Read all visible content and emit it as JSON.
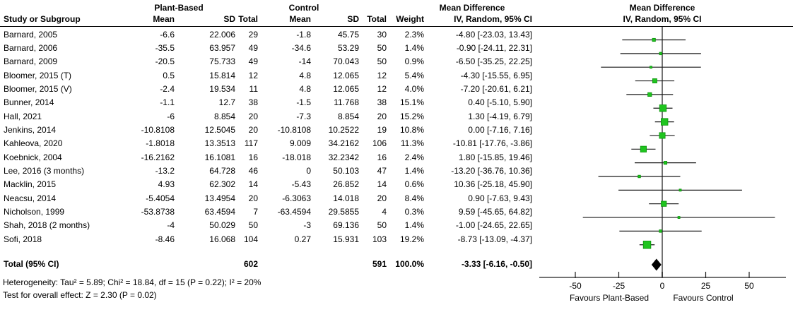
{
  "header": {
    "group_plant": "Plant-Based",
    "group_control": "Control",
    "md_text_title": "Mean Difference",
    "md_text_sub": "IV, Random, 95% CI",
    "md_plot_title": "Mean Difference",
    "md_plot_sub": "IV, Random, 95% CI",
    "study_col": "Study or Subgroup",
    "mean_col": "Mean",
    "sd_col": "SD",
    "total_col": "Total",
    "weight_col": "Weight"
  },
  "chart_data": {
    "type": "forest",
    "x_axis": {
      "ticks": [
        -50,
        -25,
        0,
        25,
        50
      ],
      "tick_labels": [
        "-50",
        "-25",
        "0",
        "25",
        "50"
      ],
      "min": -70,
      "max": 71
    },
    "favours_left": "Favours Plant-Based",
    "favours_right": "Favours Control",
    "colors": {
      "marker": "#1fc41f",
      "marker_border": "#0c930c",
      "ci_line": "#1a1a1a",
      "axis": "#737373",
      "zero_line": "#737373",
      "diamond": "#000000",
      "text": "#000000"
    },
    "studies": [
      {
        "name": "Barnard, 2005",
        "pb_mean": "-6.6",
        "pb_sd": "22.006",
        "pb_total": "29",
        "c_mean": "-1.8",
        "c_sd": "45.75",
        "c_total": "30",
        "weight": "2.3%",
        "weight_pct": 2.3,
        "md": -4.8,
        "ci_low": -23.03,
        "ci_high": 13.43,
        "md_ci": "-4.80 [-23.03, 13.43]"
      },
      {
        "name": "Barnard, 2006",
        "pb_mean": "-35.5",
        "pb_sd": "63.957",
        "pb_total": "49",
        "c_mean": "-34.6",
        "c_sd": "53.29",
        "c_total": "50",
        "weight": "1.4%",
        "weight_pct": 1.4,
        "md": -0.9,
        "ci_low": -24.11,
        "ci_high": 22.31,
        "md_ci": "-0.90 [-24.11, 22.31]"
      },
      {
        "name": "Barnard, 2009",
        "pb_mean": "-20.5",
        "pb_sd": "75.733",
        "pb_total": "49",
        "c_mean": "-14",
        "c_sd": "70.043",
        "c_total": "50",
        "weight": "0.9%",
        "weight_pct": 0.9,
        "md": -6.5,
        "ci_low": -35.25,
        "ci_high": 22.25,
        "md_ci": "-6.50 [-35.25, 22.25]"
      },
      {
        "name": "Bloomer, 2015 (T)",
        "pb_mean": "0.5",
        "pb_sd": "15.814",
        "pb_total": "12",
        "c_mean": "4.8",
        "c_sd": "12.065",
        "c_total": "12",
        "weight": "5.4%",
        "weight_pct": 5.4,
        "md": -4.3,
        "ci_low": -15.55,
        "ci_high": 6.95,
        "md_ci": "-4.30 [-15.55, 6.95]"
      },
      {
        "name": "Bloomer, 2015 (V)",
        "pb_mean": "-2.4",
        "pb_sd": "19.534",
        "pb_total": "11",
        "c_mean": "4.8",
        "c_sd": "12.065",
        "c_total": "12",
        "weight": "4.0%",
        "weight_pct": 4.0,
        "md": -7.2,
        "ci_low": -20.61,
        "ci_high": 6.21,
        "md_ci": "-7.20 [-20.61, 6.21]"
      },
      {
        "name": "Bunner, 2014",
        "pb_mean": "-1.1",
        "pb_sd": "12.7",
        "pb_total": "38",
        "c_mean": "-1.5",
        "c_sd": "11.768",
        "c_total": "38",
        "weight": "15.1%",
        "weight_pct": 15.1,
        "md": 0.4,
        "ci_low": -5.1,
        "ci_high": 5.9,
        "md_ci": "0.40 [-5.10, 5.90]"
      },
      {
        "name": "Hall, 2021",
        "pb_mean": "-6",
        "pb_sd": "8.854",
        "pb_total": "20",
        "c_mean": "-7.3",
        "c_sd": "8.854",
        "c_total": "20",
        "weight": "15.2%",
        "weight_pct": 15.2,
        "md": 1.3,
        "ci_low": -4.19,
        "ci_high": 6.79,
        "md_ci": "1.30 [-4.19, 6.79]"
      },
      {
        "name": "Jenkins, 2014",
        "pb_mean": "-10.8108",
        "pb_sd": "12.5045",
        "pb_total": "20",
        "c_mean": "-10.8108",
        "c_sd": "10.2522",
        "c_total": "19",
        "weight": "10.8%",
        "weight_pct": 10.8,
        "md": 0.0,
        "ci_low": -7.16,
        "ci_high": 7.16,
        "md_ci": "0.00 [-7.16, 7.16]"
      },
      {
        "name": "Kahleova, 2020",
        "pb_mean": "-1.8018",
        "pb_sd": "13.3513",
        "pb_total": "117",
        "c_mean": "9.009",
        "c_sd": "34.2162",
        "c_total": "106",
        "weight": "11.3%",
        "weight_pct": 11.3,
        "md": -10.81,
        "ci_low": -17.76,
        "ci_high": -3.86,
        "md_ci": "-10.81 [-17.76, -3.86]"
      },
      {
        "name": "Koebnick, 2004",
        "pb_mean": "-16.2162",
        "pb_sd": "16.1081",
        "pb_total": "16",
        "c_mean": "-18.018",
        "c_sd": "32.2342",
        "c_total": "16",
        "weight": "2.4%",
        "weight_pct": 2.4,
        "md": 1.8,
        "ci_low": -15.85,
        "ci_high": 19.46,
        "md_ci": "1.80 [-15.85, 19.46]"
      },
      {
        "name": "Lee, 2016 (3 months)",
        "pb_mean": "-13.2",
        "pb_sd": "64.728",
        "pb_total": "46",
        "c_mean": "0",
        "c_sd": "50.103",
        "c_total": "47",
        "weight": "1.4%",
        "weight_pct": 1.4,
        "md": -13.2,
        "ci_low": -36.76,
        "ci_high": 10.36,
        "md_ci": "-13.20 [-36.76, 10.36]"
      },
      {
        "name": "Macklin, 2015",
        "pb_mean": "4.93",
        "pb_sd": "62.302",
        "pb_total": "14",
        "c_mean": "-5.43",
        "c_sd": "26.852",
        "c_total": "14",
        "weight": "0.6%",
        "weight_pct": 0.6,
        "md": 10.36,
        "ci_low": -25.18,
        "ci_high": 45.9,
        "md_ci": "10.36 [-25.18, 45.90]"
      },
      {
        "name": "Neacsu, 2014",
        "pb_mean": "-5.4054",
        "pb_sd": "13.4954",
        "pb_total": "20",
        "c_mean": "-6.3063",
        "c_sd": "14.018",
        "c_total": "20",
        "weight": "8.4%",
        "weight_pct": 8.4,
        "md": 0.9,
        "ci_low": -7.63,
        "ci_high": 9.43,
        "md_ci": "0.90 [-7.63, 9.43]"
      },
      {
        "name": "Nicholson, 1999",
        "pb_mean": "-53.8738",
        "pb_sd": "63.4594",
        "pb_total": "7",
        "c_mean": "-63.4594",
        "c_sd": "29.5855",
        "c_total": "4",
        "weight": "0.3%",
        "weight_pct": 0.3,
        "md": 9.59,
        "ci_low": -45.65,
        "ci_high": 64.82,
        "md_ci": "9.59 [-45.65, 64.82]"
      },
      {
        "name": "Shah, 2018 (2 months)",
        "pb_mean": "-4",
        "pb_sd": "50.029",
        "pb_total": "50",
        "c_mean": "-3",
        "c_sd": "69.136",
        "c_total": "50",
        "weight": "1.4%",
        "weight_pct": 1.4,
        "md": -1.0,
        "ci_low": -24.65,
        "ci_high": 22.65,
        "md_ci": "-1.00 [-24.65, 22.65]"
      },
      {
        "name": "Sofi, 2018",
        "pb_mean": "-8.46",
        "pb_sd": "16.068",
        "pb_total": "104",
        "c_mean": "0.27",
        "c_sd": "15.931",
        "c_total": "103",
        "weight": "19.2%",
        "weight_pct": 19.2,
        "md": -8.73,
        "ci_low": -13.09,
        "ci_high": -4.37,
        "md_ci": "-8.73 [-13.09, -4.37]"
      }
    ],
    "total": {
      "label": "Total (95% CI)",
      "pb_total": "602",
      "c_total": "591",
      "weight": "100.0%",
      "md": -3.33,
      "ci_low": -6.16,
      "ci_high": -0.5,
      "md_ci": "-3.33 [-6.16, -0.50]"
    },
    "footnotes": {
      "heterogeneity": "Heterogeneity: Tau² = 5.89; Chi² = 18.84, df = 15 (P = 0.22); I² = 20%",
      "overall_effect": "Test for overall effect: Z = 2.30 (P = 0.02)"
    }
  }
}
